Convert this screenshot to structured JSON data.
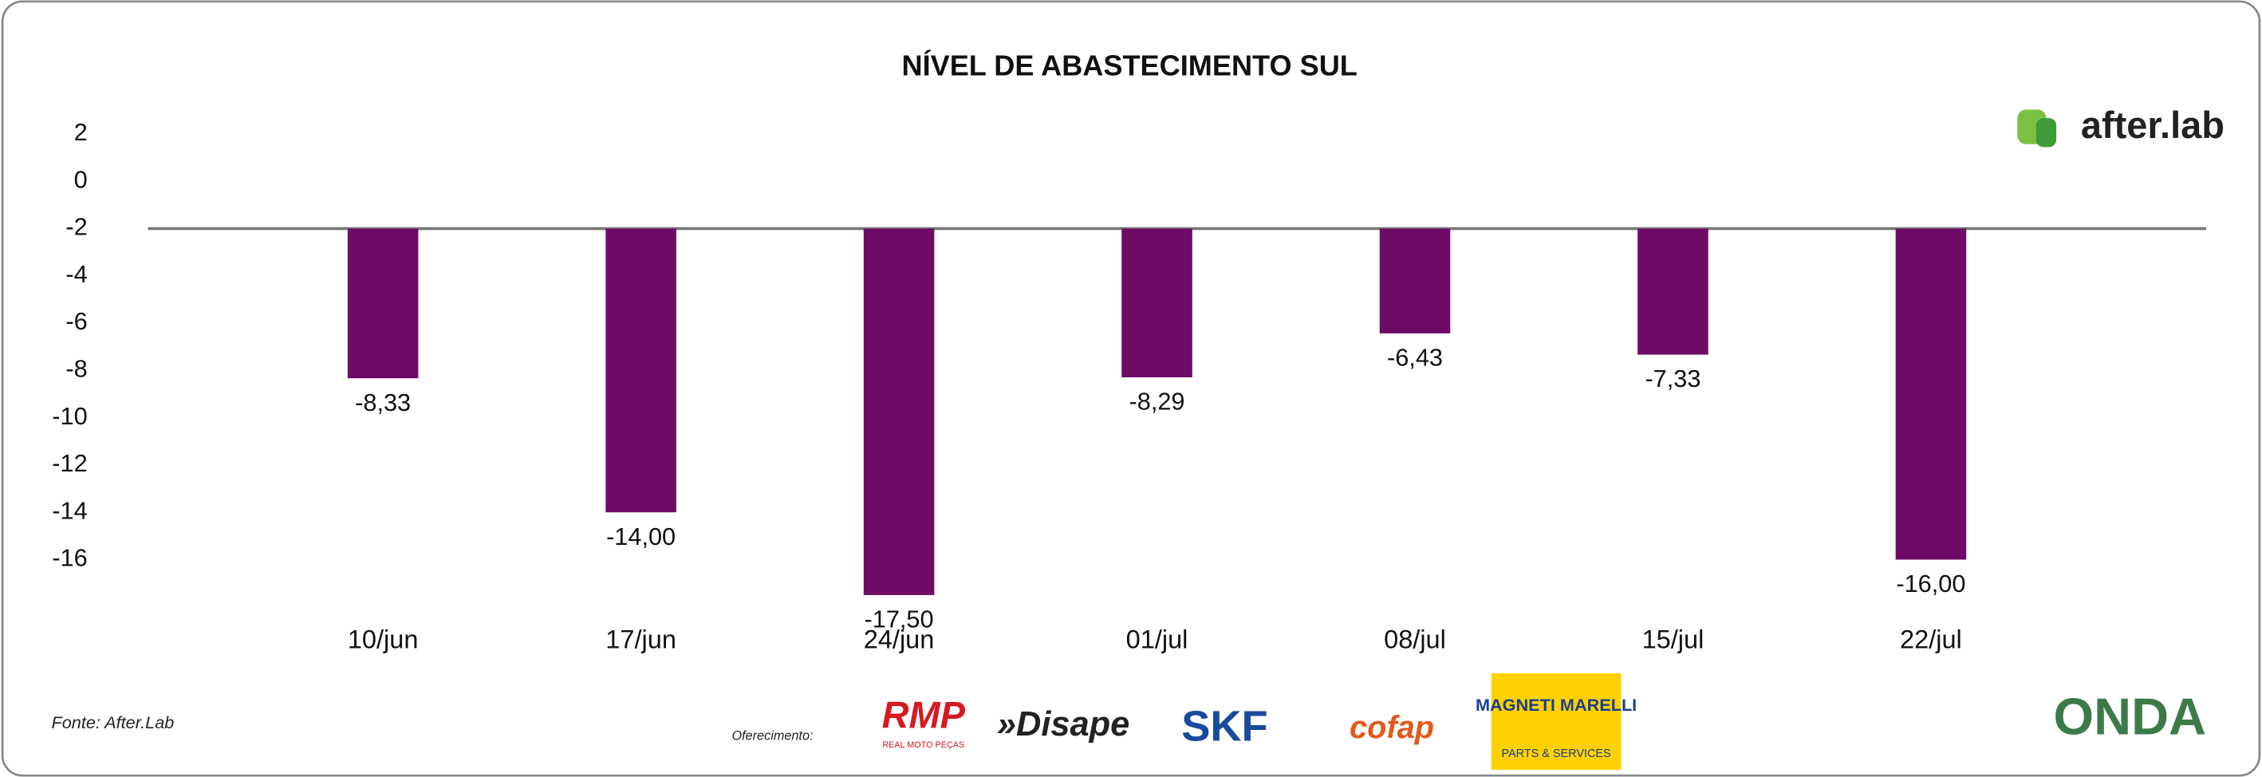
{
  "chart_data": {
    "type": "bar",
    "title": "NÍVEL DE ABASTECIMENTO SUL",
    "categories": [
      "10/jun",
      "17/jun",
      "24/jun",
      "01/jul",
      "08/jul",
      "15/jul",
      "22/jul"
    ],
    "values": [
      -8.33,
      -14.0,
      -17.5,
      -8.29,
      -6.43,
      -7.33,
      -16.0
    ],
    "value_labels": [
      "-8,33",
      "-14,00",
      "-17,50",
      "-8,29",
      "-6,43",
      "-7,33",
      "-16,00"
    ],
    "color": "#6d0b66",
    "ylim": [
      -18,
      2
    ],
    "yticks": [
      2,
      0,
      -2,
      -4,
      -6,
      -8,
      -10,
      -12,
      -14,
      -16
    ],
    "x_axis_at": -2,
    "source": "Fonte: After.Lab"
  },
  "branding": {
    "logo": "after.lab",
    "sponsor_label": "Oferecimento:",
    "sponsors": [
      "RMP",
      "REAL MOTO PEÇAS",
      "»Disape",
      "SKF",
      "cofap",
      "MAGNETI MARELLI",
      "PARTS & SERVICES"
    ],
    "footer_logo": "ONDA"
  }
}
